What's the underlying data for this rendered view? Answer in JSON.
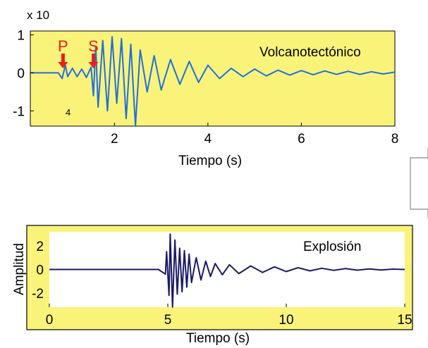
{
  "chart_data": [
    {
      "type": "line",
      "title": "",
      "annotation": "Volcanotectónico",
      "xlabel": "Tiempo (s)",
      "ylabel": "",
      "exponent": [
        "x 10",
        "4"
      ],
      "xlim": [
        0.2,
        8
      ],
      "ylim": [
        -1.4,
        1.1
      ],
      "xticks": [
        "2",
        "4",
        "6",
        "8"
      ],
      "yticks": [
        "1",
        "0",
        "-1"
      ],
      "phase_markers": [
        {
          "label": "P",
          "x": 0.9
        },
        {
          "label": "S",
          "x": 1.55
        }
      ],
      "series": [
        {
          "x": [
            0.2,
            0.5,
            0.8,
            0.88,
            0.95,
            1.0,
            1.1,
            1.2,
            1.3,
            1.4,
            1.5,
            1.55,
            1.6,
            1.65,
            1.75,
            1.85,
            1.95,
            2.05,
            2.15,
            2.25,
            2.35,
            2.45,
            2.55,
            2.7,
            2.85,
            3.0,
            3.2,
            3.4,
            3.6,
            3.8,
            4.0,
            4.25,
            4.5,
            4.75,
            5.0,
            5.25,
            5.5,
            5.75,
            6.0,
            6.25,
            6.5,
            6.75,
            7.0,
            7.25,
            7.5,
            7.75,
            8.0
          ],
          "values": [
            0,
            0,
            0,
            -0.15,
            0.2,
            -0.1,
            0.12,
            -0.1,
            0.1,
            -0.12,
            0.15,
            -0.6,
            0.7,
            -0.9,
            0.85,
            -1.0,
            0.95,
            -0.8,
            0.9,
            -1.2,
            0.75,
            -1.4,
            0.6,
            -0.5,
            0.45,
            -0.45,
            0.35,
            -0.3,
            0.3,
            -0.25,
            0.2,
            -0.15,
            0.12,
            -0.1,
            0.1,
            -0.08,
            0.07,
            -0.06,
            0.06,
            -0.05,
            0.05,
            -0.04,
            0.04,
            -0.04,
            0.03,
            -0.03,
            0.02
          ]
        }
      ],
      "colors": {
        "background": "#faf37a",
        "line": "#1f6fe0",
        "marker": "#e8201a"
      }
    },
    {
      "type": "line",
      "title": "",
      "annotation": "Explosión",
      "xlabel": "Tiempo (s)",
      "ylabel": "Amplitud",
      "xlim": [
        0,
        15
      ],
      "ylim": [
        -3.2,
        3.2
      ],
      "xticks": [
        "0",
        "5",
        "10",
        "15"
      ],
      "yticks": [
        "2",
        "0",
        "-2"
      ],
      "series": [
        {
          "x": [
            0,
            1,
            2,
            3,
            4,
            4.6,
            4.9,
            4.95,
            5.05,
            5.1,
            5.2,
            5.3,
            5.4,
            5.5,
            5.6,
            5.7,
            5.8,
            5.9,
            6.0,
            6.2,
            6.4,
            6.6,
            6.8,
            7.0,
            7.3,
            7.6,
            8.0,
            8.5,
            9.0,
            9.5,
            10.0,
            10.5,
            11.0,
            11.5,
            12.0,
            12.5,
            13.0,
            13.5,
            14.0,
            14.5,
            15.0
          ],
          "values": [
            0,
            0,
            0,
            0,
            0,
            0,
            -0.4,
            1.5,
            -2.2,
            3.0,
            -3.2,
            2.5,
            -2.1,
            1.8,
            -1.9,
            1.6,
            -1.5,
            1.3,
            -1.1,
            1.0,
            -0.9,
            0.7,
            -0.6,
            0.5,
            -0.45,
            0.4,
            -0.35,
            0.3,
            -0.25,
            0.22,
            -0.18,
            0.15,
            -0.12,
            0.1,
            -0.08,
            0.07,
            -0.06,
            0.05,
            -0.04,
            0.03,
            0
          ]
        }
      ],
      "colors": {
        "background": "#faf37a",
        "plot_bg": "#ffffff",
        "line": "#1a1a66"
      }
    }
  ],
  "colors": {
    "arrow_stroke": "#888888"
  }
}
